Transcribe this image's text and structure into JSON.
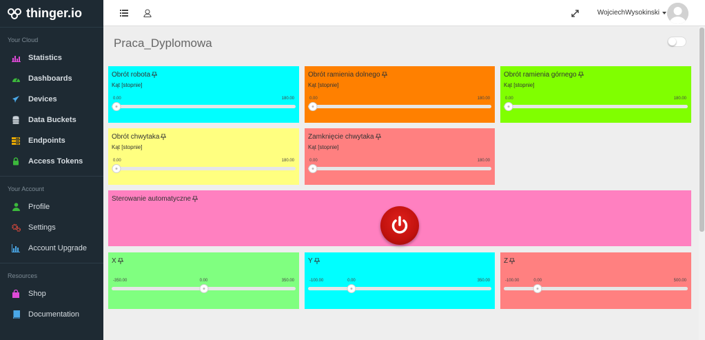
{
  "brand": {
    "name": "thinger.io"
  },
  "sidebar": {
    "sections": [
      {
        "title": "Your Cloud",
        "items": [
          {
            "label": "Statistics",
            "icon": "bar-chart-icon",
            "color": "#e04ad8"
          },
          {
            "label": "Dashboards",
            "icon": "dashboard-icon",
            "color": "#3cb83c"
          },
          {
            "label": "Devices",
            "icon": "rocket-icon",
            "color": "#4aa8e8"
          },
          {
            "label": "Data Buckets",
            "icon": "database-icon",
            "color": "#c9d1d8"
          },
          {
            "label": "Endpoints",
            "icon": "tasks-icon",
            "color": "#e8a800"
          },
          {
            "label": "Access Tokens",
            "icon": "lock-icon",
            "color": "#3cb83c"
          }
        ]
      },
      {
        "title": "Your Account",
        "items": [
          {
            "label": "Profile",
            "icon": "user-icon",
            "color": "#3cb83c"
          },
          {
            "label": "Settings",
            "icon": "cogs-icon",
            "color": "#e04a3c"
          },
          {
            "label": "Account Upgrade",
            "icon": "chart-icon",
            "color": "#4aa8e8"
          }
        ]
      },
      {
        "title": "Resources",
        "items": [
          {
            "label": "Shop",
            "icon": "shopping-bag-icon",
            "color": "#e04ad8"
          },
          {
            "label": "Documentation",
            "icon": "book-icon",
            "color": "#4aa8e8"
          }
        ]
      }
    ]
  },
  "topbar": {
    "user_name": "WojciechWysokinski",
    "menu_icon": "list-icon",
    "profile_icon": "person-outline-icon",
    "fullscreen_icon": "expand-icon"
  },
  "dashboard": {
    "title": "Praca_Dyplomowa",
    "widgets": [
      {
        "title": "Obrót robota",
        "subtitle": "Kąt [stopnie]",
        "color": "#00ffff",
        "min": "0.00",
        "max": "180.00",
        "value_fraction": 0.0
      },
      {
        "title": "Obrót ramienia dolnego",
        "subtitle": "Kąt [stopnie]",
        "color": "#ff8000",
        "min": "0.00",
        "max": "180.00",
        "value_fraction": 0.0
      },
      {
        "title": "Obrót ramienia górnego",
        "subtitle": "Kąt [stopnie]",
        "color": "#80ff00",
        "min": "0.00",
        "max": "180.00",
        "value_fraction": 0.0
      },
      {
        "title": "Obrót chwytaka",
        "subtitle": "Kąt [stopnie]",
        "color": "#ffff80",
        "min": "0.00",
        "max": "180.00",
        "value_fraction": 0.0
      },
      {
        "title": "Zamknięcie chwytaka",
        "subtitle": "Kąt [stopnie]",
        "color": "#ff8080",
        "min": "0.00",
        "max": "180.00",
        "value_fraction": 0.0
      },
      {
        "title": "Sterowanie automatyczne",
        "color": "#ff80c0",
        "button_state": "off"
      },
      {
        "title": "X",
        "color": "#80ff80",
        "min": "-350.00",
        "max": "350.00",
        "current": "0.00",
        "value_fraction": 0.5
      },
      {
        "title": "Y",
        "color": "#00ffff",
        "min": "-100.00",
        "max": "350.00",
        "current": "0.00",
        "value_fraction": 0.222
      },
      {
        "title": "Z",
        "color": "#ff8080",
        "min": "-100.00",
        "max": "500.00",
        "current": "0.00",
        "value_fraction": 0.167
      }
    ]
  }
}
